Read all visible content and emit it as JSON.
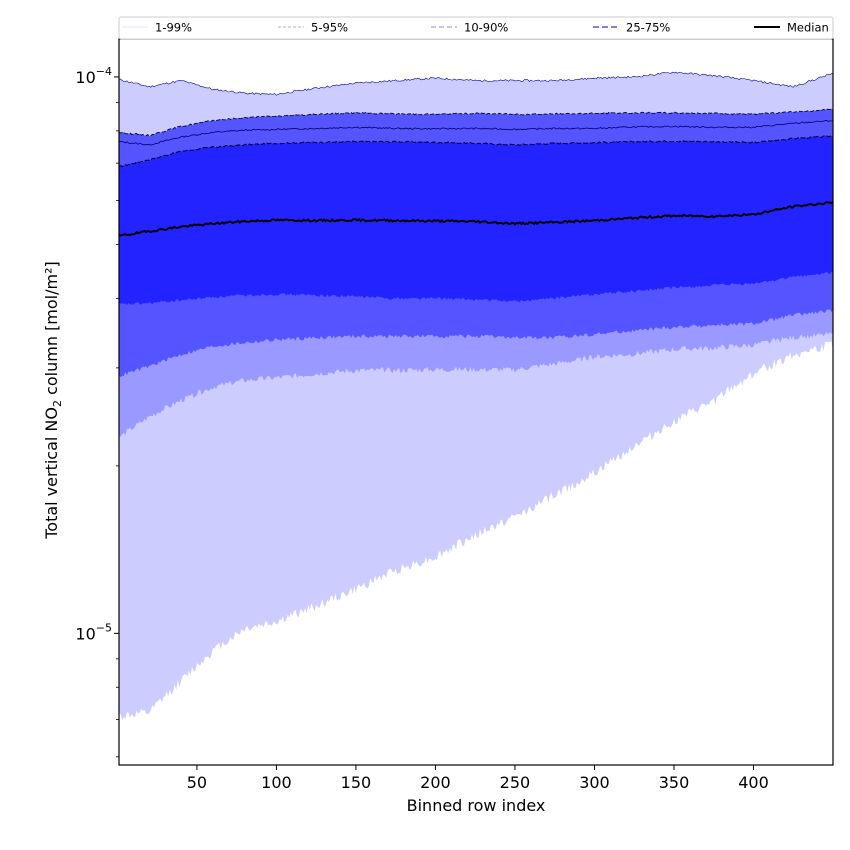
{
  "chart_data": {
    "type": "area",
    "xlabel": "Binned row index",
    "ylabel_prefix": "Total vertical NO",
    "ylabel_sub": "2",
    "ylabel_suffix": " column [mol/m²]",
    "y_scale": "log",
    "xlim": [
      1,
      450
    ],
    "ylim": [
      5.8e-06,
      0.000117
    ],
    "x_ticks": [
      50,
      100,
      150,
      200,
      250,
      300,
      350,
      400
    ],
    "x_tick_labels": [
      "50",
      "100",
      "150",
      "200",
      "250",
      "300",
      "350",
      "400"
    ],
    "y_major_ticks": [
      1e-05,
      0.0001
    ],
    "y_tick_labels": [
      {
        "base": "10",
        "exp": "−5"
      },
      {
        "base": "10",
        "exp": "−4"
      }
    ],
    "grid": false,
    "legend_placement": "top, above plot",
    "legend": [
      "1-99%",
      "5-95%",
      "10-90%",
      "25-75%",
      "Median"
    ],
    "x": [
      1,
      20,
      40,
      60,
      80,
      100,
      125,
      150,
      175,
      200,
      225,
      250,
      275,
      300,
      325,
      350,
      375,
      400,
      425,
      450
    ],
    "bands": [
      {
        "name": "1-99%",
        "color": "#ccccff",
        "lower": [
          7.1e-06,
          7.2e-06,
          8.2e-06,
          9.3e-06,
          1.02e-05,
          1.05e-05,
          1.12e-05,
          1.2e-05,
          1.3e-05,
          1.37e-05,
          1.5e-05,
          1.62e-05,
          1.77e-05,
          1.94e-05,
          2.17e-05,
          2.4e-05,
          2.61e-05,
          2.93e-05,
          3.17e-05,
          3.3e-05
        ],
        "upper": [
          9.9e-05,
          9.6e-05,
          9.85e-05,
          9.5e-05,
          9.35e-05,
          9.3e-05,
          9.55e-05,
          9.75e-05,
          9.85e-05,
          9.95e-05,
          9.85e-05,
          9.85e-05,
          9.85e-05,
          9.95e-05,
          0.0001,
          0.000102,
          0.0001005,
          9.85e-05,
          9.6e-05,
          0.0001015
        ]
      },
      {
        "name": "5-95%",
        "color": "#9999ff",
        "lower": [
          2.25e-05,
          2.45e-05,
          2.62e-05,
          2.77e-05,
          2.85e-05,
          2.88e-05,
          2.93e-05,
          2.97e-05,
          2.97e-05,
          2.98e-05,
          2.98e-05,
          2.98e-05,
          3.05e-05,
          3.14e-05,
          3.18e-05,
          3.24e-05,
          3.26e-05,
          3.3e-05,
          3.4e-05,
          3.45e-05
        ]
      },
      {
        "name": "10-90%",
        "color": "#5555ff",
        "lower": [
          2.9e-05,
          3.02e-05,
          3.17e-05,
          3.28e-05,
          3.33e-05,
          3.37e-05,
          3.4e-05,
          3.42e-05,
          3.42e-05,
          3.42e-05,
          3.42e-05,
          3.4e-05,
          3.4e-05,
          3.45e-05,
          3.5e-05,
          3.55e-05,
          3.58e-05,
          3.6e-05,
          3.73e-05,
          3.8e-05
        ],
        "upper": [
          7.95e-05,
          7.85e-05,
          8.15e-05,
          8.35e-05,
          8.45e-05,
          8.5e-05,
          8.57e-05,
          8.62e-05,
          8.58e-05,
          8.57e-05,
          8.6e-05,
          8.57e-05,
          8.58e-05,
          8.6e-05,
          8.62e-05,
          8.62e-05,
          8.6e-05,
          8.57e-05,
          8.65e-05,
          8.75e-05
        ]
      },
      {
        "name": "25-75%",
        "color": "#2323ff",
        "lower": [
          3.9e-05,
          3.92e-05,
          3.97e-05,
          4.02e-05,
          4.05e-05,
          4.07e-05,
          4.05e-05,
          4.03e-05,
          4e-05,
          4e-05,
          3.98e-05,
          3.95e-05,
          4e-05,
          4.07e-05,
          4.12e-05,
          4.18e-05,
          4.22e-05,
          4.25e-05,
          4.37e-05,
          4.45e-05
        ],
        "upper": [
          6.9e-05,
          7.1e-05,
          7.35e-05,
          7.48e-05,
          7.55e-05,
          7.6e-05,
          7.63e-05,
          7.65e-05,
          7.65e-05,
          7.63e-05,
          7.6e-05,
          7.55e-05,
          7.6e-05,
          7.62e-05,
          7.65e-05,
          7.67e-05,
          7.65e-05,
          7.62e-05,
          7.75e-05,
          7.83e-05
        ]
      }
    ],
    "upper_5_95": [
      7.65e-05,
      7.55e-05,
      7.8e-05,
      7.95e-05,
      8.02e-05,
      8.05e-05,
      8.08e-05,
      8.12e-05,
      8.08e-05,
      8.07e-05,
      8.08e-05,
      8.05e-05,
      8.08e-05,
      8.08e-05,
      8.13e-05,
      8.15e-05,
      8.12e-05,
      8.12e-05,
      8.25e-05,
      8.35e-05
    ],
    "median": [
      5.18e-05,
      5.28e-05,
      5.38e-05,
      5.45e-05,
      5.5e-05,
      5.53e-05,
      5.52e-05,
      5.53e-05,
      5.52e-05,
      5.51e-05,
      5.5e-05,
      5.45e-05,
      5.48e-05,
      5.52e-05,
      5.58e-05,
      5.63e-05,
      5.62e-05,
      5.66e-05,
      5.85e-05,
      5.95e-05
    ],
    "median_color": "#000000"
  }
}
